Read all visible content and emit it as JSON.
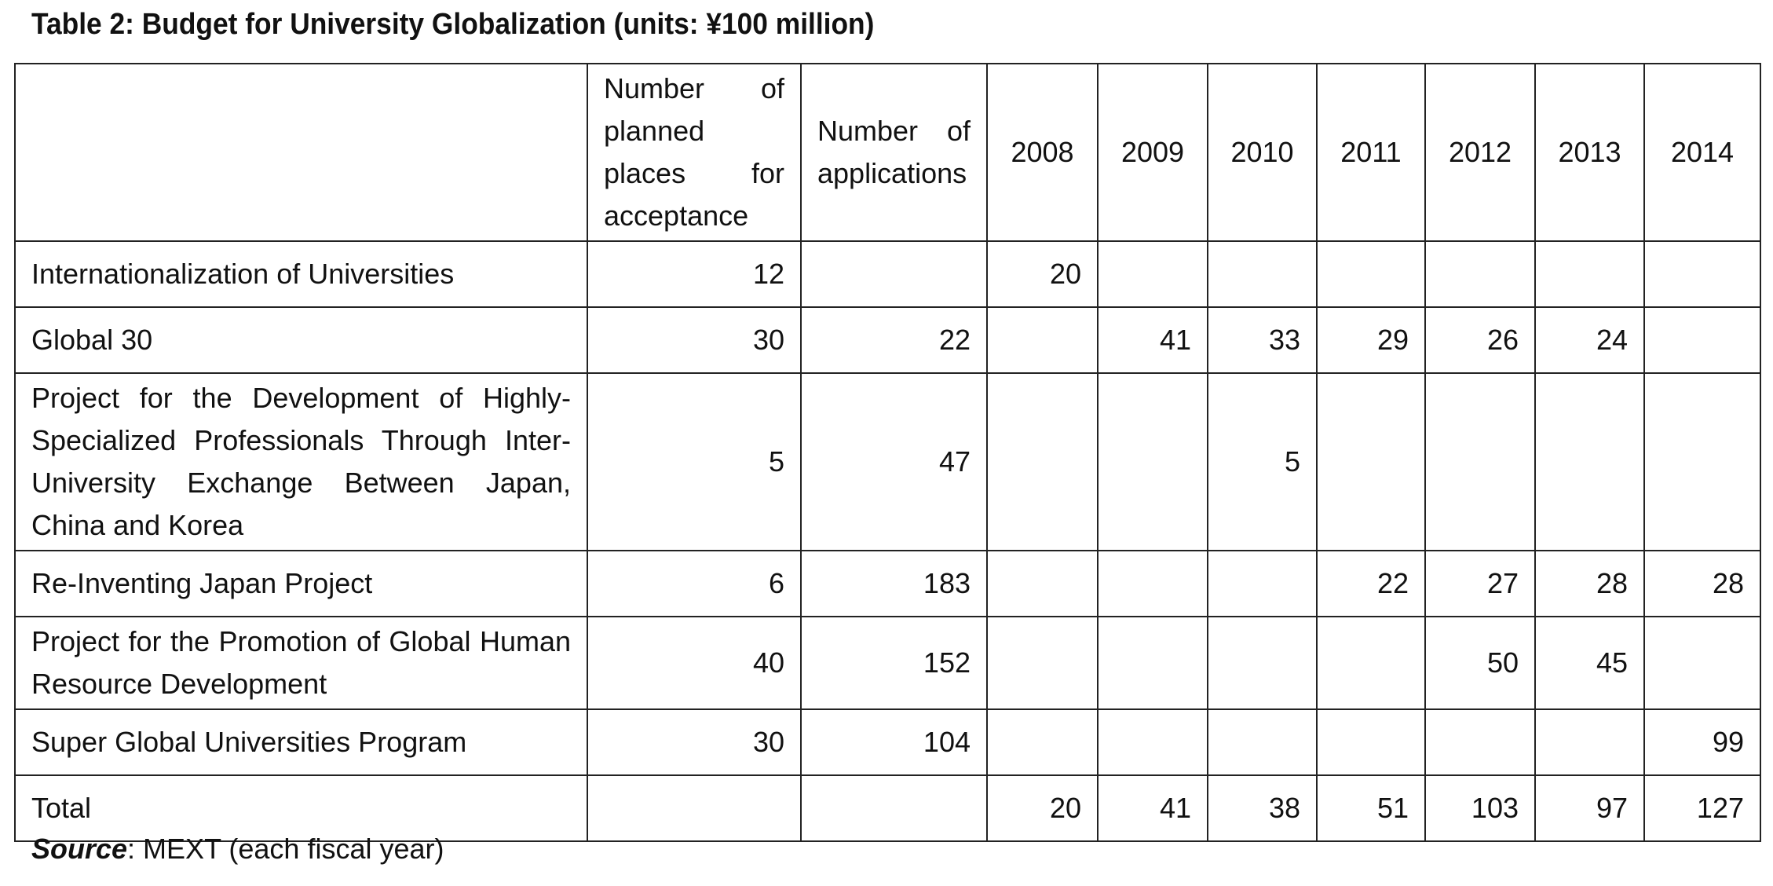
{
  "title": "Table 2: Budget for University Globalization (units: ¥100 million)",
  "header": {
    "blank": "",
    "planned": "Number of planned places for acceptance",
    "applications": "Number of applications",
    "years": [
      "2008",
      "2009",
      "2010",
      "2011",
      "2012",
      "2013",
      "2014"
    ]
  },
  "rows": [
    {
      "label": "Internationalization of Universities",
      "planned": "12",
      "applications": "",
      "values": [
        "20",
        "",
        "",
        "",
        "",
        "",
        ""
      ]
    },
    {
      "label": "Global 30",
      "planned": "30",
      "applications": "22",
      "values": [
        "",
        "41",
        "33",
        "29",
        "26",
        "24",
        ""
      ]
    },
    {
      "label": "Project for the Development of Highly-Specialized Professionals Through Inter-University Exchange Between Japan, China and Korea",
      "planned": "5",
      "applications": "47",
      "values": [
        "",
        "",
        "5",
        "",
        "",
        "",
        ""
      ]
    },
    {
      "label": "Re-Inventing Japan Project",
      "planned": "6",
      "applications": "183",
      "values": [
        "",
        "",
        "",
        "22",
        "27",
        "28",
        "28"
      ]
    },
    {
      "label": "Project for the Promotion of Global Human Resource Development",
      "planned": "40",
      "applications": "152",
      "values": [
        "",
        "",
        "",
        "",
        "50",
        "45",
        ""
      ]
    },
    {
      "label": "Super Global Universities Program",
      "planned": "30",
      "applications": "104",
      "values": [
        "",
        "",
        "",
        "",
        "",
        "",
        "99"
      ]
    },
    {
      "label": "Total",
      "planned": "",
      "applications": "",
      "values": [
        "20",
        "41",
        "38",
        "51",
        "103",
        "97",
        "127"
      ]
    }
  ],
  "source": {
    "label": "Source",
    "text": ": MEXT (each fiscal year)"
  }
}
